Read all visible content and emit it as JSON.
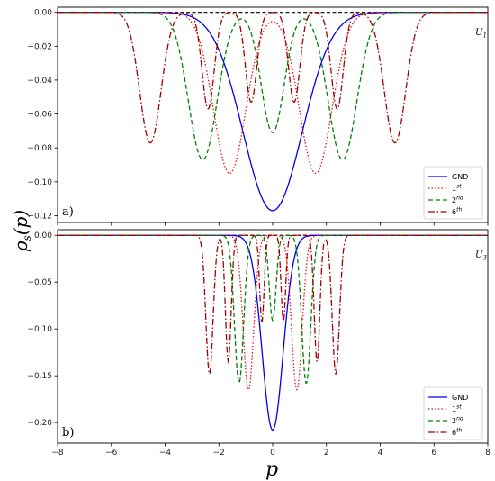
{
  "figure": {
    "ylabel": "ρs(p)",
    "xlabel": "p"
  },
  "chart_data": [
    {
      "type": "line",
      "panel_label": "a)",
      "corner_label": "U1",
      "xlim": [
        -8,
        8
      ],
      "ylim": [
        -0.124,
        0.003
      ],
      "xticks": [
        -8,
        -6,
        -4,
        -2,
        0,
        2,
        4,
        6,
        8
      ],
      "xtick_labels": [
        "",
        "",
        "",
        "",
        "",
        "",
        "",
        "",
        ""
      ],
      "yticks": [
        0.0,
        -0.02,
        -0.04,
        -0.06,
        -0.08,
        -0.1,
        -0.12
      ],
      "ytick_labels": [
        "0.00",
        "−0.02",
        "−0.04",
        "−0.06",
        "−0.08",
        "−0.10",
        "−0.12"
      ],
      "legend_position": "lower-right",
      "reference_line": {
        "y": 0,
        "style": "dashed",
        "color": "#000000"
      },
      "series": [
        {
          "name": "GND",
          "sup": "",
          "color": "#0000ee",
          "dash": "",
          "centers": [
            0
          ],
          "depths": [
            -0.117
          ],
          "widths": [
            1.55
          ]
        },
        {
          "name": "1",
          "sup": "st",
          "color": "#ee0000",
          "dash": "1.4 2.2",
          "centers": [
            -1.6,
            1.6
          ],
          "depths": [
            -0.095,
            -0.095
          ],
          "widths": [
            0.85,
            0.85
          ]
        },
        {
          "name": "2",
          "sup": "nd",
          "color": "#008000",
          "dash": "5 3",
          "centers": [
            -2.6,
            0,
            2.6
          ],
          "depths": [
            -0.087,
            -0.071,
            -0.087
          ],
          "widths": [
            0.75,
            0.6,
            0.75
          ]
        },
        {
          "name": "6",
          "sup": "th",
          "color": "#a00000",
          "dash": "7 2.5 1.5 2.5",
          "centers": [
            -4.55,
            -2.4,
            -0.8,
            0.8,
            2.4,
            4.55
          ],
          "depths": [
            -0.077,
            -0.057,
            -0.053,
            -0.053,
            -0.057,
            -0.077
          ],
          "widths": [
            0.56,
            0.32,
            0.3,
            0.3,
            0.32,
            0.56
          ]
        }
      ]
    },
    {
      "type": "line",
      "panel_label": "b)",
      "corner_label": "U3",
      "xlim": [
        -8,
        8
      ],
      "ylim": [
        -0.222,
        0.006
      ],
      "xticks": [
        -8,
        -6,
        -4,
        -2,
        0,
        2,
        4,
        6,
        8
      ],
      "xtick_labels": [
        "−8",
        "−6",
        "−4",
        "−2",
        "0",
        "2",
        "4",
        "6",
        "8"
      ],
      "yticks": [
        0.0,
        -0.05,
        -0.1,
        -0.15,
        -0.2
      ],
      "ytick_labels": [
        "0.00",
        "−0.05",
        "−0.10",
        "−0.15",
        "−0.20"
      ],
      "legend_position": "lower-right",
      "reference_line": {
        "y": 0,
        "style": "dashed",
        "color": "#000000"
      },
      "series": [
        {
          "name": "GND",
          "sup": "",
          "color": "#0000ee",
          "dash": "",
          "centers": [
            0
          ],
          "depths": [
            -0.208
          ],
          "widths": [
            0.55
          ]
        },
        {
          "name": "1",
          "sup": "st",
          "color": "#ee0000",
          "dash": "1.4 2.2",
          "centers": [
            -0.9,
            0.9
          ],
          "depths": [
            -0.165,
            -0.165
          ],
          "widths": [
            0.28,
            0.28
          ]
        },
        {
          "name": "2",
          "sup": "nd",
          "color": "#008000",
          "dash": "5 3",
          "centers": [
            -1.25,
            0,
            1.25
          ],
          "depths": [
            -0.158,
            -0.091,
            -0.158
          ],
          "widths": [
            0.24,
            0.18,
            0.24
          ]
        },
        {
          "name": "6",
          "sup": "th",
          "color": "#a00000",
          "dash": "7 2.5 1.5 2.5",
          "centers": [
            -2.35,
            -1.65,
            -0.4,
            0.4,
            1.65,
            2.35
          ],
          "depths": [
            -0.148,
            -0.135,
            -0.092,
            -0.092,
            -0.135,
            -0.148
          ],
          "widths": [
            0.19,
            0.15,
            0.12,
            0.12,
            0.15,
            0.19
          ]
        }
      ]
    }
  ]
}
